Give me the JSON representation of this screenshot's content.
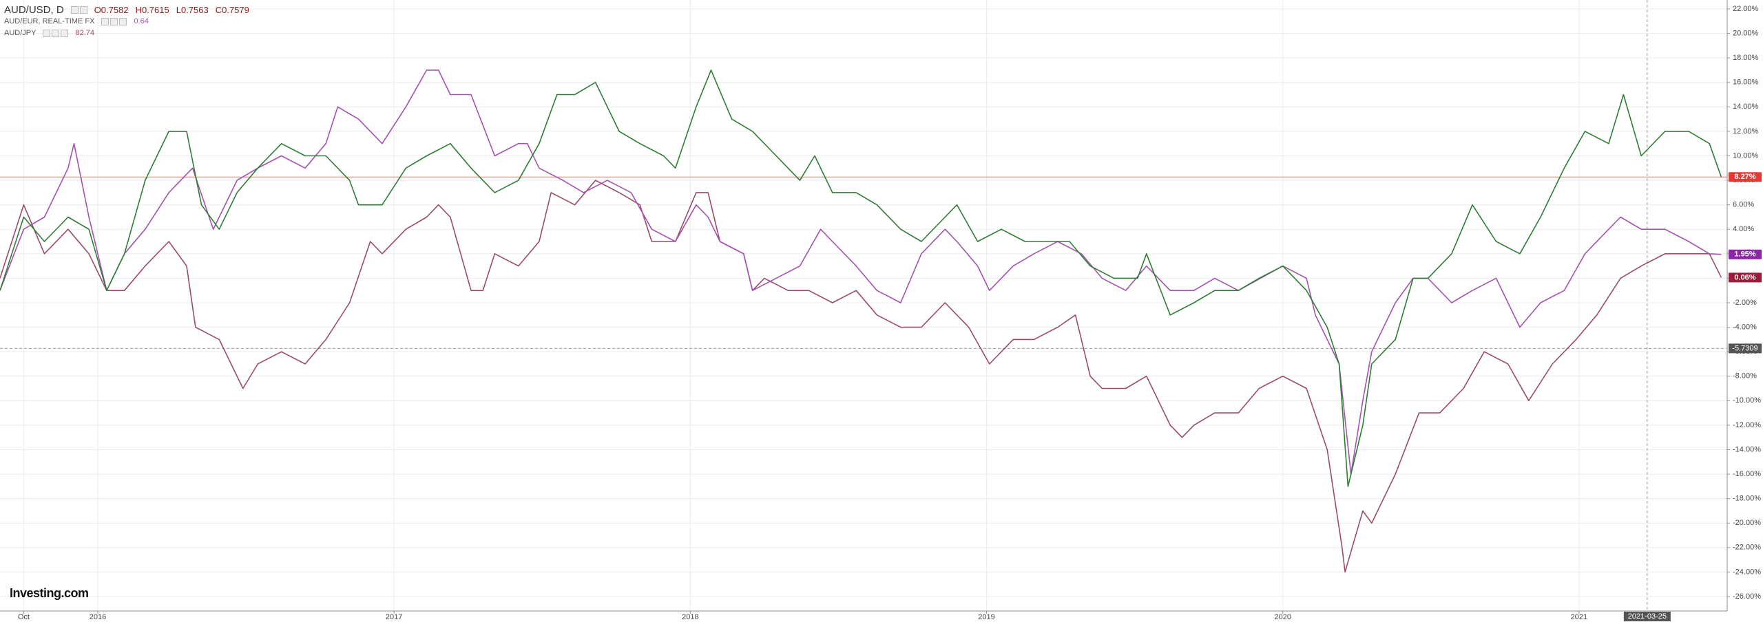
{
  "chart_data": {
    "type": "line",
    "watermark": "Investing.com",
    "xlim": [
      2015.67,
      2021.5
    ],
    "xticks": [
      {
        "value": 2015.75,
        "label": "Oct"
      },
      2016,
      2017,
      2018,
      2019,
      2020,
      2021
    ],
    "ylim": [
      -27.18,
      22.73
    ],
    "yticks": [
      {
        "value": 22,
        "label": "22.00%"
      },
      {
        "value": 20,
        "label": "20.00%"
      },
      {
        "value": 18,
        "label": "18.00%"
      },
      {
        "value": 16,
        "label": "16.00%"
      },
      {
        "value": 14,
        "label": "14.00%"
      },
      {
        "value": 12,
        "label": "12.00%"
      },
      {
        "value": 10,
        "label": "10.00%"
      },
      {
        "value": 8,
        "label": "8.00%"
      },
      {
        "value": 6,
        "label": "6.00%"
      },
      {
        "value": 4,
        "label": "4.00%"
      },
      {
        "value": 2,
        "label": "2.00%"
      },
      {
        "value": 0,
        "label": "0.00%"
      },
      {
        "value": -2,
        "label": "-2.00%"
      },
      {
        "value": -4,
        "label": "-4.00%"
      },
      {
        "value": -6,
        "label": "-6.00%"
      },
      {
        "value": -8,
        "label": "-8.00%"
      },
      {
        "value": -10,
        "label": "-10.00%"
      },
      {
        "value": -12,
        "label": "-12.00%"
      },
      {
        "value": -14,
        "label": "-14.00%"
      },
      {
        "value": -16,
        "label": "-16.00%"
      },
      {
        "value": -18,
        "label": "-18.00%"
      },
      {
        "value": -20,
        "label": "-20.00%"
      },
      {
        "value": -22,
        "label": "-22.00%"
      },
      {
        "value": -24,
        "label": "-24.00%"
      },
      {
        "value": -26,
        "label": "-26.00%"
      }
    ],
    "grid": true,
    "series": [
      {
        "name": "AUD/USD, D",
        "color": "#2e7d32",
        "ohlc": [
          "O0.7582",
          "H0.7615",
          "L0.7563",
          "C0.7579"
        ],
        "x": [
          2015.67,
          2015.75,
          2015.82,
          2015.9,
          2015.97,
          2016.03,
          2016.09,
          2016.16,
          2016.24,
          2016.3,
          2016.35,
          2016.41,
          2016.47,
          2016.54,
          2016.62,
          2016.7,
          2016.77,
          2016.85,
          2016.88,
          2016.96,
          2017.04,
          2017.11,
          2017.19,
          2017.26,
          2017.34,
          2017.42,
          2017.49,
          2017.55,
          2017.61,
          2017.68,
          2017.76,
          2017.83,
          2017.91,
          2017.95,
          2018.02,
          2018.07,
          2018.14,
          2018.21,
          2018.29,
          2018.37,
          2018.42,
          2018.48,
          2018.56,
          2018.63,
          2018.71,
          2018.78,
          2018.86,
          2018.9,
          2018.97,
          2019.05,
          2019.13,
          2019.2,
          2019.28,
          2019.35,
          2019.43,
          2019.51,
          2019.54,
          2019.62,
          2019.7,
          2019.77,
          2019.85,
          2019.92,
          2020.0,
          2020.08,
          2020.15,
          2020.19,
          2020.22,
          2020.27,
          2020.3,
          2020.38,
          2020.44,
          2020.49,
          2020.57,
          2020.64,
          2020.72,
          2020.8,
          2020.87,
          2020.95,
          2021.02,
          2021.1,
          2021.15,
          2021.21,
          2021.29,
          2021.37,
          2021.44,
          2021.48
        ],
        "values": [
          -1,
          5,
          3,
          5,
          4,
          -1,
          2,
          8,
          12,
          12,
          6,
          4,
          7,
          9,
          11,
          10,
          10,
          8,
          6,
          6,
          9,
          10,
          11,
          9,
          7,
          8,
          11,
          15,
          15,
          16,
          12,
          11,
          10,
          9,
          14,
          17,
          13,
          12,
          10,
          8,
          10,
          7,
          7,
          6,
          4,
          3,
          5,
          6,
          3,
          4,
          3,
          3,
          3,
          1,
          0,
          0,
          2,
          -3,
          -2,
          -1,
          -1,
          0,
          1,
          -1,
          -4,
          -7,
          -17,
          -12,
          -7,
          -5,
          0,
          0,
          2,
          6,
          3,
          2,
          5,
          9,
          12,
          11,
          15,
          10,
          12,
          12,
          11,
          8.27
        ]
      },
      {
        "name": "AUD/EUR, REAL-TIME FX",
        "color": "#a452b0",
        "last": 0.64,
        "x": [
          2015.67,
          2015.75,
          2015.82,
          2015.9,
          2015.92,
          2015.97,
          2016.03,
          2016.09,
          2016.16,
          2016.24,
          2016.32,
          2016.39,
          2016.47,
          2016.54,
          2016.62,
          2016.7,
          2016.77,
          2016.81,
          2016.88,
          2016.96,
          2017.04,
          2017.11,
          2017.15,
          2017.19,
          2017.26,
          2017.34,
          2017.42,
          2017.45,
          2017.49,
          2017.57,
          2017.64,
          2017.72,
          2017.8,
          2017.87,
          2017.95,
          2018.02,
          2018.06,
          2018.1,
          2018.18,
          2018.21,
          2018.29,
          2018.37,
          2018.44,
          2018.48,
          2018.56,
          2018.63,
          2018.71,
          2018.78,
          2018.86,
          2018.9,
          2018.97,
          2019.01,
          2019.09,
          2019.16,
          2019.24,
          2019.32,
          2019.39,
          2019.47,
          2019.54,
          2019.62,
          2019.7,
          2019.77,
          2019.85,
          2020.0,
          2020.08,
          2020.11,
          2020.19,
          2020.23,
          2020.27,
          2020.3,
          2020.38,
          2020.44,
          2020.49,
          2020.57,
          2020.64,
          2020.72,
          2020.8,
          2020.87,
          2020.95,
          2021.02,
          2021.1,
          2021.14,
          2021.21,
          2021.29,
          2021.37,
          2021.44,
          2021.48
        ],
        "values": [
          -1,
          4,
          5,
          9,
          11,
          5,
          -1,
          2,
          4,
          7,
          9,
          4,
          8,
          9,
          10,
          9,
          11,
          14,
          13,
          11,
          14,
          17,
          17,
          15,
          15,
          10,
          11,
          11,
          9,
          8,
          7,
          8,
          7,
          4,
          3,
          6,
          5,
          3,
          2,
          -1,
          0,
          1,
          4,
          3,
          1,
          -1,
          -2,
          2,
          4,
          3,
          1,
          -1,
          1,
          2,
          3,
          2,
          0,
          -1,
          1,
          -1,
          -1,
          0,
          -1,
          1,
          0,
          -3,
          -7,
          -16,
          -10,
          -6,
          -2,
          0,
          0,
          -2,
          -1,
          0,
          -4,
          -2,
          -1,
          2,
          4,
          5,
          4,
          4,
          3,
          2,
          1.95
        ]
      },
      {
        "name": "AUD/JPY",
        "color": "#9c4a6a",
        "last": 82.74,
        "x": [
          2015.67,
          2015.75,
          2015.82,
          2015.9,
          2015.97,
          2016.03,
          2016.09,
          2016.16,
          2016.24,
          2016.3,
          2016.33,
          2016.41,
          2016.49,
          2016.54,
          2016.62,
          2016.7,
          2016.77,
          2016.85,
          2016.92,
          2016.96,
          2017.04,
          2017.11,
          2017.15,
          2017.19,
          2017.26,
          2017.3,
          2017.34,
          2017.42,
          2017.49,
          2017.53,
          2017.61,
          2017.68,
          2017.76,
          2017.83,
          2017.87,
          2017.95,
          2018.02,
          2018.06,
          2018.1,
          2018.18,
          2018.21,
          2018.25,
          2018.33,
          2018.4,
          2018.48,
          2018.56,
          2018.63,
          2018.71,
          2018.78,
          2018.86,
          2018.94,
          2019.01,
          2019.09,
          2019.16,
          2019.24,
          2019.3,
          2019.35,
          2019.39,
          2019.47,
          2019.54,
          2019.62,
          2019.66,
          2019.7,
          2019.77,
          2019.85,
          2019.92,
          2020.0,
          2020.08,
          2020.15,
          2020.2,
          2020.21,
          2020.27,
          2020.3,
          2020.38,
          2020.46,
          2020.53,
          2020.61,
          2020.68,
          2020.76,
          2020.83,
          2020.91,
          2020.99,
          2021.06,
          2021.14,
          2021.21,
          2021.29,
          2021.37,
          2021.44,
          2021.48
        ],
        "values": [
          0,
          6,
          2,
          4,
          2,
          -1,
          -1,
          1,
          3,
          1,
          -4,
          -5,
          -9,
          -7,
          -6,
          -7,
          -5,
          -2,
          3,
          2,
          4,
          5,
          6,
          5,
          -1,
          -1,
          2,
          1,
          3,
          7,
          6,
          8,
          7,
          6,
          3,
          3,
          7,
          7,
          3,
          2,
          -1,
          0,
          -1,
          -1,
          -2,
          -1,
          -3,
          -4,
          -4,
          -2,
          -4,
          -7,
          -5,
          -5,
          -4,
          -3,
          -8,
          -9,
          -9,
          -8,
          -12,
          -13,
          -12,
          -11,
          -11,
          -9,
          -8,
          -9,
          -14,
          -22,
          -24,
          -19,
          -20,
          -16,
          -11,
          -11,
          -9,
          -6,
          -7,
          -10,
          -7,
          -5,
          -3,
          0,
          1,
          2,
          2,
          2,
          0.06
        ]
      }
    ],
    "price_lines": [
      {
        "value": 8.27,
        "label": "8.27%",
        "color": "#e53935"
      },
      {
        "value": 1.95,
        "label": "1.95%",
        "color": "#8e24aa"
      },
      {
        "value": 0.06,
        "label": "0.06%",
        "color": "#9c1a3a"
      }
    ],
    "crosshair": {
      "x": {
        "value": 2021.23,
        "label": "2021-03-25"
      },
      "y": {
        "value": -5.7309,
        "label": "-5.7309"
      }
    }
  }
}
